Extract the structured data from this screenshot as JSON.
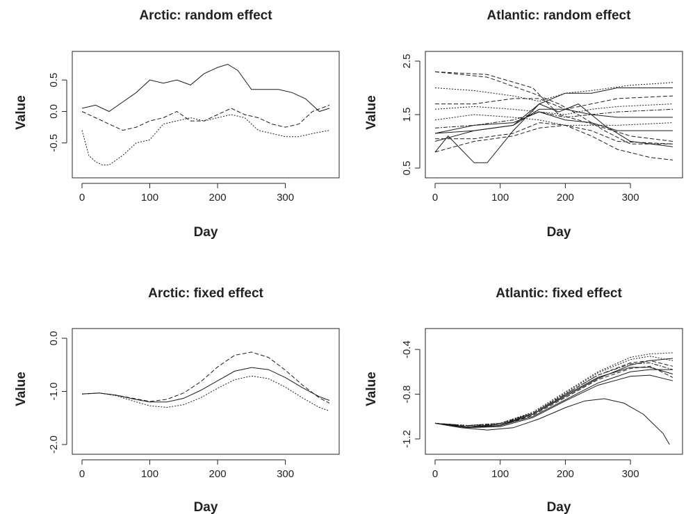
{
  "figure": {
    "background": "#ffffff",
    "line_color": "#1a1a1a"
  },
  "chart_data": [
    {
      "type": "line",
      "title": "Arctic: random effect",
      "xlabel": "Day",
      "ylabel": "Value",
      "xlim": [
        0,
        365
      ],
      "ylim": [
        -0.9,
        0.8
      ],
      "x_ticks": [
        0,
        100,
        200,
        300
      ],
      "y_ticks": [
        -0.5,
        0.0,
        0.5
      ],
      "y_tick_labels": [
        "-0.5",
        "0.0",
        "0.5"
      ],
      "series": [
        {
          "style": "solid",
          "x": [
            0,
            20,
            40,
            60,
            80,
            100,
            120,
            140,
            160,
            180,
            200,
            215,
            230,
            250,
            270,
            290,
            310,
            330,
            350,
            365
          ],
          "y": [
            0.05,
            0.1,
            0.0,
            0.15,
            0.3,
            0.5,
            0.45,
            0.5,
            0.42,
            0.6,
            0.7,
            0.75,
            0.65,
            0.35,
            0.35,
            0.35,
            0.3,
            0.2,
            0.0,
            0.05
          ]
        },
        {
          "style": "dashed",
          "x": [
            0,
            20,
            40,
            60,
            80,
            100,
            120,
            140,
            160,
            180,
            200,
            220,
            240,
            260,
            280,
            300,
            320,
            340,
            365
          ],
          "y": [
            0.0,
            -0.1,
            -0.2,
            -0.3,
            -0.25,
            -0.15,
            -0.1,
            0.0,
            -0.15,
            -0.15,
            -0.05,
            0.05,
            -0.05,
            -0.1,
            -0.2,
            -0.25,
            -0.2,
            0.0,
            0.1
          ]
        },
        {
          "style": "dotted",
          "x": [
            0,
            10,
            20,
            30,
            40,
            60,
            80,
            100,
            120,
            140,
            160,
            180,
            200,
            220,
            240,
            260,
            280,
            300,
            320,
            340,
            365
          ],
          "y": [
            -0.3,
            -0.7,
            -0.8,
            -0.85,
            -0.85,
            -0.7,
            -0.5,
            -0.45,
            -0.2,
            -0.15,
            -0.1,
            -0.15,
            -0.1,
            -0.05,
            -0.1,
            -0.3,
            -0.35,
            -0.4,
            -0.4,
            -0.35,
            -0.3
          ]
        }
      ]
    },
    {
      "type": "line",
      "title": "Atlantic: random effect",
      "xlabel": "Day",
      "ylabel": "Value",
      "xlim": [
        0,
        365
      ],
      "ylim": [
        0.5,
        2.5
      ],
      "x_ticks": [
        0,
        100,
        200,
        300
      ],
      "y_ticks": [
        0.5,
        1.5,
        2.5
      ],
      "y_tick_labels": [
        "0.5",
        "1.5",
        "2.5"
      ],
      "series": [
        {
          "style": "dashed",
          "x": [
            0,
            80,
            150,
            190,
            220,
            260,
            300,
            365
          ],
          "y": [
            2.3,
            2.25,
            2.0,
            1.5,
            1.4,
            1.25,
            1.1,
            1.0
          ]
        },
        {
          "style": "dashed",
          "x": [
            0,
            80,
            150,
            190,
            220,
            260,
            300,
            365
          ],
          "y": [
            2.3,
            2.2,
            1.9,
            1.7,
            1.5,
            1.2,
            0.95,
            0.95
          ]
        },
        {
          "style": "solid",
          "x": [
            0,
            20,
            40,
            60,
            80,
            120,
            160,
            200,
            240,
            280,
            365
          ],
          "y": [
            0.8,
            1.1,
            0.85,
            0.6,
            0.6,
            1.2,
            1.7,
            1.9,
            1.9,
            2.0,
            2.0
          ]
        },
        {
          "style": "solid",
          "x": [
            0,
            60,
            120,
            160,
            200,
            240,
            280,
            365
          ],
          "y": [
            1.0,
            1.2,
            1.3,
            1.6,
            1.6,
            1.5,
            1.45,
            1.45
          ]
        },
        {
          "style": "solid",
          "x": [
            0,
            60,
            120,
            160,
            200,
            240,
            280,
            365
          ],
          "y": [
            1.15,
            1.3,
            1.35,
            1.55,
            1.4,
            1.35,
            1.2,
            1.2
          ]
        },
        {
          "style": "dotted",
          "x": [
            0,
            60,
            120,
            160,
            200,
            240,
            280,
            365
          ],
          "y": [
            1.6,
            1.65,
            1.6,
            1.55,
            1.5,
            1.6,
            1.65,
            1.7
          ]
        },
        {
          "style": "dashed",
          "x": [
            0,
            60,
            120,
            160,
            200,
            240,
            280,
            365
          ],
          "y": [
            1.7,
            1.7,
            1.8,
            1.8,
            1.6,
            1.7,
            1.8,
            1.85
          ]
        },
        {
          "style": "dotted",
          "x": [
            0,
            60,
            120,
            160,
            200,
            240,
            300,
            365
          ],
          "y": [
            2.0,
            1.95,
            1.85,
            1.75,
            1.9,
            1.95,
            2.05,
            2.1
          ]
        },
        {
          "style": "dashed",
          "x": [
            0,
            60,
            120,
            160,
            200,
            240,
            280,
            365
          ],
          "y": [
            0.8,
            1.0,
            1.1,
            1.25,
            1.3,
            1.2,
            1.0,
            0.95
          ]
        },
        {
          "style": "dashed",
          "x": [
            0,
            60,
            120,
            160,
            200,
            240,
            280,
            330,
            365
          ],
          "y": [
            1.05,
            1.05,
            1.15,
            1.35,
            1.3,
            1.1,
            0.85,
            0.7,
            0.65
          ]
        },
        {
          "style": "dotted",
          "x": [
            0,
            60,
            120,
            160,
            200,
            240,
            280,
            365
          ],
          "y": [
            1.4,
            1.5,
            1.45,
            1.4,
            1.3,
            1.3,
            1.3,
            1.35
          ]
        },
        {
          "style": "dotdash",
          "x": [
            0,
            60,
            120,
            160,
            200,
            240,
            280,
            365
          ],
          "y": [
            1.25,
            1.3,
            1.4,
            1.55,
            1.45,
            1.5,
            1.55,
            1.6
          ]
        },
        {
          "style": "solid",
          "x": [
            0,
            60,
            120,
            160,
            190,
            220,
            260,
            300,
            365
          ],
          "y": [
            1.15,
            1.2,
            1.3,
            1.7,
            1.55,
            1.7,
            1.3,
            1.0,
            0.9
          ]
        }
      ]
    },
    {
      "type": "line",
      "title": "Arctic: fixed effect",
      "xlabel": "Day",
      "ylabel": "Value",
      "xlim": [
        0,
        365
      ],
      "ylim": [
        -2.0,
        0.0
      ],
      "x_ticks": [
        0,
        100,
        200,
        300
      ],
      "y_ticks": [
        -2.0,
        -1.0,
        0.0
      ],
      "y_tick_labels": [
        "-2.0",
        "-1.0",
        "0.0"
      ],
      "series": [
        {
          "style": "solid",
          "x": [
            0,
            25,
            50,
            75,
            100,
            125,
            150,
            175,
            200,
            225,
            250,
            275,
            300,
            325,
            350,
            365
          ],
          "y": [
            -1.05,
            -1.03,
            -1.07,
            -1.14,
            -1.2,
            -1.2,
            -1.13,
            -0.98,
            -0.8,
            -0.62,
            -0.55,
            -0.59,
            -0.74,
            -0.93,
            -1.1,
            -1.17
          ]
        },
        {
          "style": "dashed",
          "x": [
            0,
            25,
            50,
            75,
            100,
            125,
            150,
            175,
            200,
            225,
            250,
            275,
            300,
            325,
            350,
            365
          ],
          "y": [
            -1.05,
            -1.03,
            -1.07,
            -1.13,
            -1.19,
            -1.15,
            -1.03,
            -0.82,
            -0.54,
            -0.32,
            -0.26,
            -0.36,
            -0.6,
            -0.88,
            -1.12,
            -1.22
          ]
        },
        {
          "style": "dotted",
          "x": [
            0,
            25,
            50,
            75,
            100,
            125,
            150,
            175,
            200,
            225,
            250,
            275,
            300,
            325,
            350,
            365
          ],
          "y": [
            -1.05,
            -1.03,
            -1.08,
            -1.18,
            -1.27,
            -1.3,
            -1.25,
            -1.12,
            -0.94,
            -0.78,
            -0.71,
            -0.76,
            -0.92,
            -1.12,
            -1.3,
            -1.37
          ]
        }
      ]
    },
    {
      "type": "line",
      "title": "Atlantic: fixed effect",
      "xlabel": "Day",
      "ylabel": "Value",
      "xlim": [
        0,
        365
      ],
      "ylim": [
        -1.25,
        -0.3
      ],
      "x_ticks": [
        0,
        100,
        200,
        300
      ],
      "y_ticks": [
        -1.2,
        -0.8,
        -0.4
      ],
      "y_tick_labels": [
        "-1.2",
        "-0.8",
        "-0.4"
      ],
      "series": [
        {
          "style": "solid",
          "x": [
            0,
            50,
            100,
            150,
            200,
            250,
            300,
            330,
            365
          ],
          "y": [
            -1.06,
            -1.09,
            -1.08,
            -0.98,
            -0.82,
            -0.66,
            -0.54,
            -0.5,
            -0.48
          ]
        },
        {
          "style": "dotted",
          "x": [
            0,
            50,
            100,
            150,
            200,
            250,
            300,
            330,
            365
          ],
          "y": [
            -1.06,
            -1.08,
            -1.06,
            -0.96,
            -0.78,
            -0.6,
            -0.47,
            -0.44,
            -0.43
          ]
        },
        {
          "style": "dashed",
          "x": [
            0,
            50,
            100,
            150,
            200,
            250,
            300,
            330,
            365
          ],
          "y": [
            -1.06,
            -1.08,
            -1.06,
            -0.97,
            -0.8,
            -0.63,
            -0.52,
            -0.5,
            -0.55
          ]
        },
        {
          "style": "solid",
          "x": [
            0,
            50,
            100,
            150,
            200,
            250,
            300,
            330,
            365
          ],
          "y": [
            -1.06,
            -1.09,
            -1.07,
            -0.98,
            -0.81,
            -0.65,
            -0.56,
            -0.56,
            -0.62
          ]
        },
        {
          "style": "dotdash",
          "x": [
            0,
            50,
            100,
            150,
            200,
            250,
            300,
            330,
            365
          ],
          "y": [
            -1.06,
            -1.08,
            -1.07,
            -0.97,
            -0.8,
            -0.63,
            -0.53,
            -0.52,
            -0.58
          ]
        },
        {
          "style": "solid",
          "x": [
            0,
            50,
            100,
            150,
            200,
            250,
            300,
            330,
            365
          ],
          "y": [
            -1.06,
            -1.1,
            -1.08,
            -1.0,
            -0.85,
            -0.7,
            -0.6,
            -0.58,
            -0.58
          ]
        },
        {
          "style": "dashed",
          "x": [
            0,
            50,
            100,
            150,
            200,
            250,
            300,
            330,
            365
          ],
          "y": [
            -1.06,
            -1.09,
            -1.08,
            -0.99,
            -0.83,
            -0.67,
            -0.57,
            -0.55,
            -0.65
          ]
        },
        {
          "style": "dotted",
          "x": [
            0,
            50,
            100,
            150,
            200,
            250,
            300,
            330,
            365
          ],
          "y": [
            -1.06,
            -1.08,
            -1.06,
            -0.97,
            -0.79,
            -0.61,
            -0.49,
            -0.46,
            -0.5
          ]
        },
        {
          "style": "solid",
          "x": [
            0,
            50,
            100,
            150,
            200,
            250,
            300,
            330,
            365
          ],
          "y": [
            -1.06,
            -1.1,
            -1.09,
            -1.01,
            -0.86,
            -0.72,
            -0.64,
            -0.63,
            -0.68
          ]
        },
        {
          "style": "solid",
          "x": [
            0,
            40,
            80,
            120,
            160,
            200,
            230,
            260,
            290,
            320,
            350,
            360
          ],
          "y": [
            -1.06,
            -1.1,
            -1.12,
            -1.1,
            -1.02,
            -0.92,
            -0.86,
            -0.84,
            -0.88,
            -0.98,
            -1.15,
            -1.25
          ]
        }
      ]
    }
  ]
}
